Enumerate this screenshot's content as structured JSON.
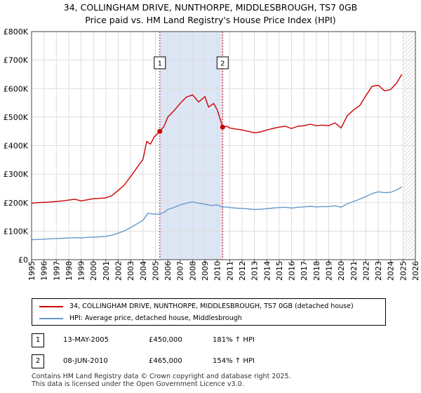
{
  "title_line1": "34, COLLINGHAM DRIVE, NUNTHORPE, MIDDLESBROUGH, TS7 0GB",
  "title_line2": "Price paid vs. HM Land Registry's House Price Index (HPI)",
  "colors": {
    "price_line": "#cc0000",
    "hpi_line": "#6699cc",
    "shade": "#dde6f5",
    "grid": "#dddddd"
  },
  "chart_data": {
    "type": "line",
    "xlabel": "",
    "ylabel": "",
    "xlim": [
      1995,
      2026
    ],
    "ylim": [
      0,
      800000
    ],
    "x_ticks": [
      "1995",
      "1996",
      "1997",
      "1998",
      "1999",
      "2000",
      "2001",
      "2002",
      "2003",
      "2004",
      "2005",
      "2006",
      "2007",
      "2008",
      "2009",
      "2010",
      "2011",
      "2012",
      "2013",
      "2014",
      "2015",
      "2016",
      "2017",
      "2018",
      "2019",
      "2020",
      "2021",
      "2022",
      "2023",
      "2024",
      "2025",
      "2026"
    ],
    "y_ticks": [
      {
        "value": 0,
        "label": "£0"
      },
      {
        "value": 100000,
        "label": "£100K"
      },
      {
        "value": 200000,
        "label": "£200K"
      },
      {
        "value": 300000,
        "label": "£300K"
      },
      {
        "value": 400000,
        "label": "£400K"
      },
      {
        "value": 500000,
        "label": "£500K"
      },
      {
        "value": 600000,
        "label": "£600K"
      },
      {
        "value": 700000,
        "label": "£700K"
      },
      {
        "value": 800000,
        "label": "£800K"
      }
    ],
    "series": [
      {
        "name": "34, COLLINGHAM DRIVE, NUNTHORPE, MIDDLESBROUGH, TS7 0GB (detached house)",
        "color": "#cc0000",
        "points": [
          [
            1995.0,
            198000
          ],
          [
            1995.5,
            200000
          ],
          [
            1996.0,
            201000
          ],
          [
            1996.5,
            202000
          ],
          [
            1997.0,
            204000
          ],
          [
            1997.5,
            206000
          ],
          [
            1998.0,
            209000
          ],
          [
            1998.5,
            212000
          ],
          [
            1999.0,
            206000
          ],
          [
            1999.5,
            210000
          ],
          [
            2000.0,
            214000
          ],
          [
            2000.5,
            215000
          ],
          [
            2001.0,
            217000
          ],
          [
            2001.5,
            225000
          ],
          [
            2002.0,
            243000
          ],
          [
            2002.5,
            262000
          ],
          [
            2003.0,
            292000
          ],
          [
            2003.5,
            322000
          ],
          [
            2004.0,
            352000
          ],
          [
            2004.3,
            415000
          ],
          [
            2004.6,
            405000
          ],
          [
            2004.9,
            430000
          ],
          [
            2005.36,
            450000
          ],
          [
            2005.7,
            468000
          ],
          [
            2006.0,
            500000
          ],
          [
            2006.5,
            522000
          ],
          [
            2007.0,
            548000
          ],
          [
            2007.5,
            570000
          ],
          [
            2008.0,
            578000
          ],
          [
            2008.5,
            553000
          ],
          [
            2009.0,
            572000
          ],
          [
            2009.3,
            535000
          ],
          [
            2009.7,
            548000
          ],
          [
            2010.0,
            525000
          ],
          [
            2010.43,
            465000
          ],
          [
            2010.8,
            468000
          ],
          [
            2011.0,
            462000
          ],
          [
            2011.5,
            458000
          ],
          [
            2012.0,
            455000
          ],
          [
            2012.5,
            450000
          ],
          [
            2013.0,
            445000
          ],
          [
            2013.5,
            448000
          ],
          [
            2014.0,
            455000
          ],
          [
            2014.5,
            460000
          ],
          [
            2015.0,
            465000
          ],
          [
            2015.5,
            468000
          ],
          [
            2016.0,
            460000
          ],
          [
            2016.5,
            468000
          ],
          [
            2017.0,
            470000
          ],
          [
            2017.5,
            475000
          ],
          [
            2018.0,
            470000
          ],
          [
            2018.5,
            472000
          ],
          [
            2019.0,
            470000
          ],
          [
            2019.5,
            480000
          ],
          [
            2020.0,
            462000
          ],
          [
            2020.5,
            505000
          ],
          [
            2021.0,
            525000
          ],
          [
            2021.5,
            540000
          ],
          [
            2022.0,
            575000
          ],
          [
            2022.5,
            608000
          ],
          [
            2023.0,
            612000
          ],
          [
            2023.5,
            592000
          ],
          [
            2024.0,
            597000
          ],
          [
            2024.5,
            620000
          ],
          [
            2024.9,
            650000
          ]
        ]
      },
      {
        "name": "HPI: Average price, detached house, Middlesbrough",
        "color": "#6699cc",
        "points": [
          [
            1995.0,
            70000
          ],
          [
            1995.5,
            71000
          ],
          [
            1996.0,
            72000
          ],
          [
            1996.5,
            73000
          ],
          [
            1997.0,
            74000
          ],
          [
            1997.5,
            75000
          ],
          [
            1998.0,
            76000
          ],
          [
            1998.5,
            77000
          ],
          [
            1999.0,
            76000
          ],
          [
            1999.5,
            78000
          ],
          [
            2000.0,
            79000
          ],
          [
            2000.5,
            80000
          ],
          [
            2001.0,
            82000
          ],
          [
            2001.5,
            86000
          ],
          [
            2002.0,
            93000
          ],
          [
            2002.5,
            101000
          ],
          [
            2003.0,
            113000
          ],
          [
            2003.5,
            125000
          ],
          [
            2004.0,
            138000
          ],
          [
            2004.4,
            163000
          ],
          [
            2004.8,
            160000
          ],
          [
            2005.36,
            160000
          ],
          [
            2005.7,
            166000
          ],
          [
            2006.0,
            176000
          ],
          [
            2006.5,
            183000
          ],
          [
            2007.0,
            192000
          ],
          [
            2007.5,
            198000
          ],
          [
            2008.0,
            203000
          ],
          [
            2008.5,
            198000
          ],
          [
            2009.0,
            195000
          ],
          [
            2009.5,
            190000
          ],
          [
            2010.0,
            192000
          ],
          [
            2010.43,
            184000
          ],
          [
            2010.8,
            185000
          ],
          [
            2011.0,
            183000
          ],
          [
            2011.5,
            181000
          ],
          [
            2012.0,
            180000
          ],
          [
            2012.5,
            178000
          ],
          [
            2013.0,
            176000
          ],
          [
            2013.5,
            177000
          ],
          [
            2014.0,
            179000
          ],
          [
            2014.5,
            181000
          ],
          [
            2015.0,
            183000
          ],
          [
            2015.5,
            184000
          ],
          [
            2016.0,
            181000
          ],
          [
            2016.5,
            184000
          ],
          [
            2017.0,
            185000
          ],
          [
            2017.5,
            187000
          ],
          [
            2018.0,
            185000
          ],
          [
            2018.5,
            186000
          ],
          [
            2019.0,
            186000
          ],
          [
            2019.5,
            189000
          ],
          [
            2020.0,
            184000
          ],
          [
            2020.5,
            196000
          ],
          [
            2021.0,
            204000
          ],
          [
            2021.5,
            212000
          ],
          [
            2022.0,
            221000
          ],
          [
            2022.5,
            232000
          ],
          [
            2023.0,
            238000
          ],
          [
            2023.5,
            235000
          ],
          [
            2024.0,
            236000
          ],
          [
            2024.5,
            245000
          ],
          [
            2024.9,
            255000
          ]
        ]
      }
    ],
    "sales": [
      {
        "label": "1",
        "x": 2005.36,
        "price": 450000
      },
      {
        "label": "2",
        "x": 2010.43,
        "price": 465000
      }
    ],
    "shade_range": [
      2005.36,
      2010.43
    ],
    "hatch_from": 2025.0
  },
  "legend": {
    "price_label": "34, COLLINGHAM DRIVE, NUNTHORPE, MIDDLESBROUGH, TS7 0GB (detached house)",
    "hpi_label": "HPI: Average price, detached house, Middlesbrough"
  },
  "sales_table": [
    {
      "num": "1",
      "date": "13-MAY-2005",
      "price": "£450,000",
      "hpi": "181% ↑ HPI"
    },
    {
      "num": "2",
      "date": "08-JUN-2010",
      "price": "£465,000",
      "hpi": "154% ↑ HPI"
    }
  ],
  "footer_line1": "Contains HM Land Registry data © Crown copyright and database right 2025.",
  "footer_line2": "This data is licensed under the Open Government Licence v3.0."
}
